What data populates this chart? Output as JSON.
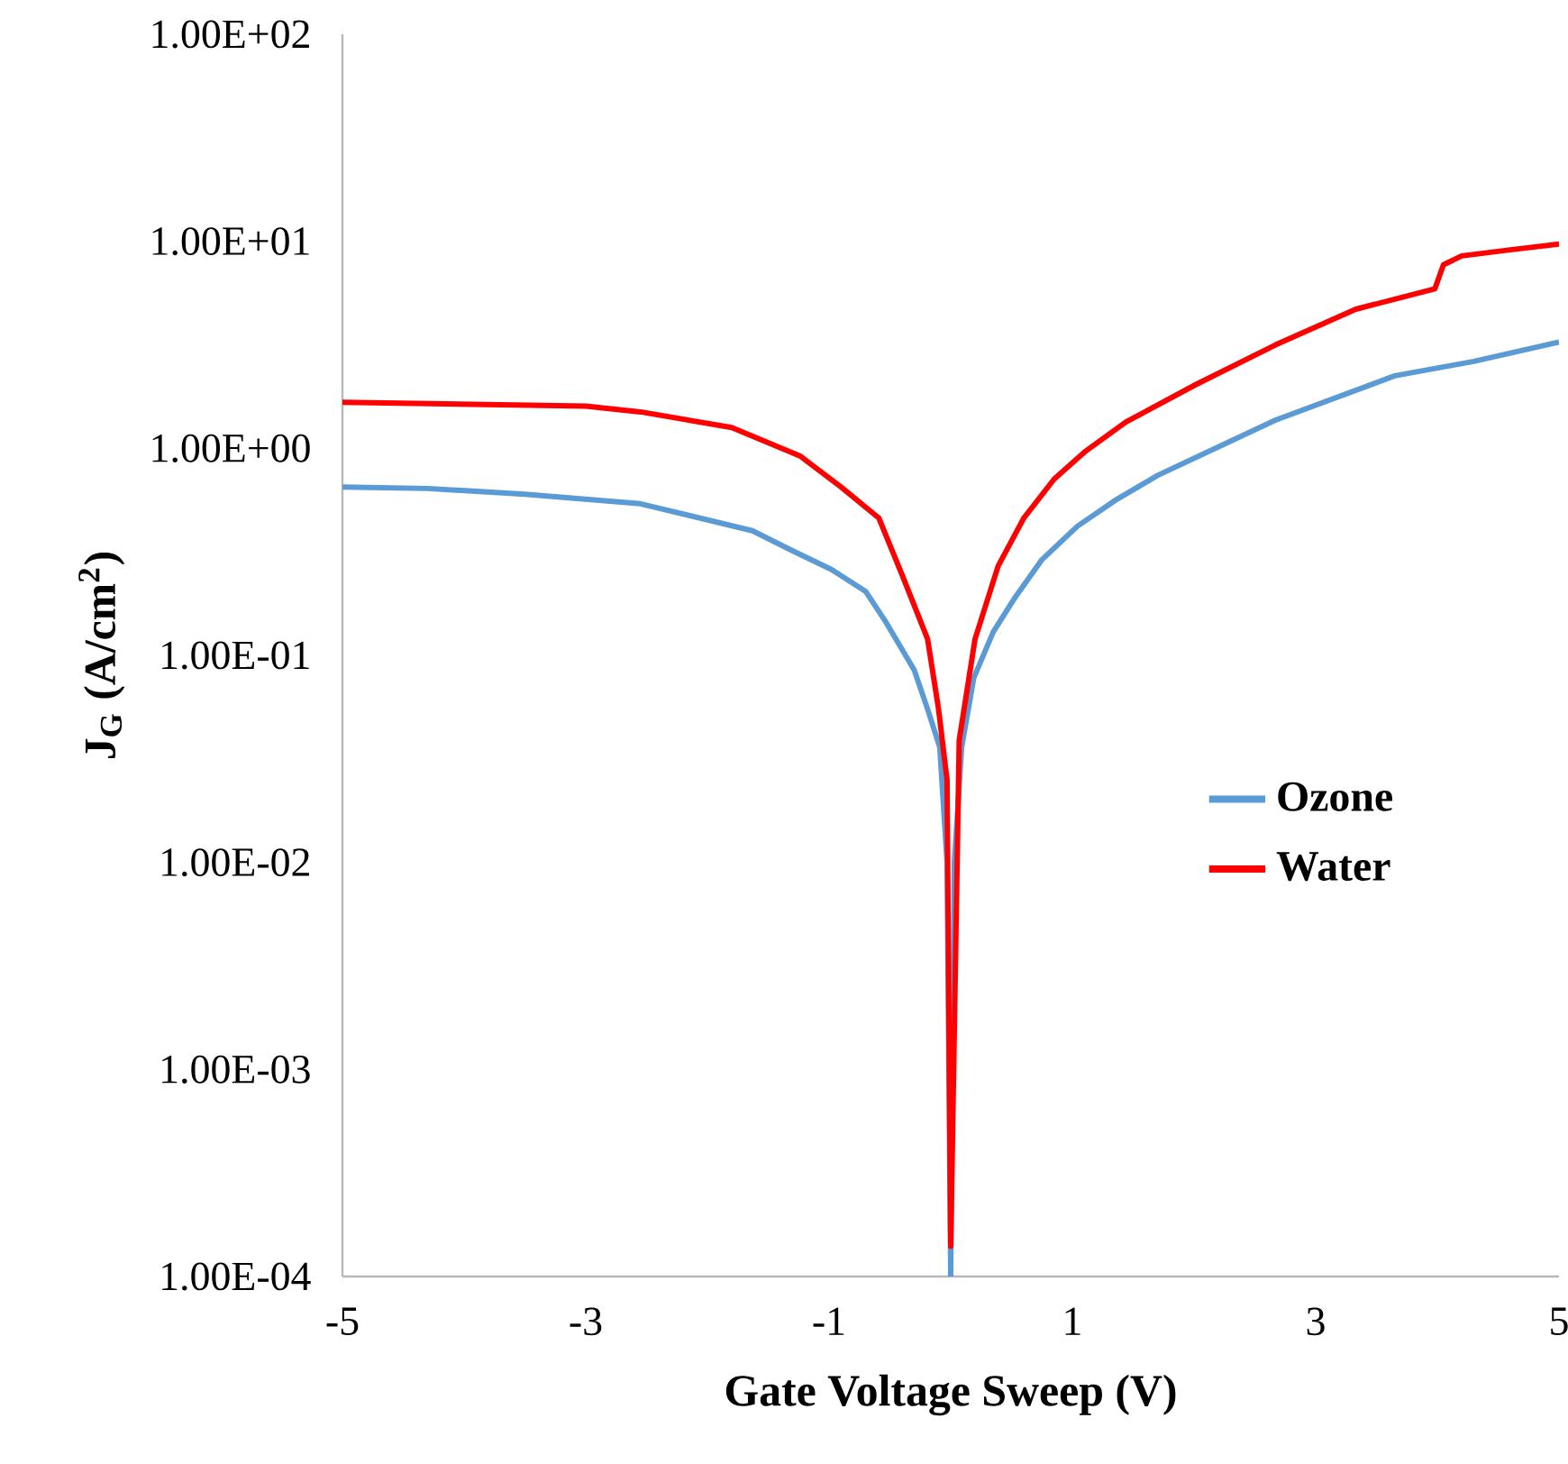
{
  "chart_data": {
    "type": "line",
    "xlabel": "Gate Voltage Sweep (V)",
    "ylabel": "J$_{G}$ (A/cm$^{2}$)",
    "log": "y",
    "grid": false,
    "legend": "right",
    "marker": "none",
    "line_style": "solid",
    "xlim": [
      -5,
      5
    ],
    "xticks": [
      -5,
      -3,
      -1,
      1,
      3,
      5
    ],
    "ylim": [
      0.0001,
      100
    ],
    "yticks": [
      {
        "value": 0.0001,
        "label": "1.00E-04"
      },
      {
        "value": 0.001,
        "label": "1.00E-03"
      },
      {
        "value": 0.01,
        "label": "1.00E-02"
      },
      {
        "value": 0.1,
        "label": "1.00E-01"
      },
      {
        "value": 1,
        "label": "1.00E+00"
      },
      {
        "value": 10,
        "label": "1.00E+01"
      },
      {
        "value": 100,
        "label": "1.00E+02"
      }
    ],
    "series": [
      {
        "name": "Ozone",
        "color": "#5b9bd5",
        "x": [
          -5,
          -4.3,
          -3.5,
          -2.55,
          -1.63,
          -1.3,
          -0.98,
          -0.7,
          -0.53,
          -0.3,
          -0.19,
          -0.09,
          -0.03,
          0,
          0.03,
          0.09,
          0.19,
          0.35,
          0.52,
          0.75,
          1.04,
          1.35,
          1.7,
          2.67,
          3.65,
          4.3,
          5
        ],
        "values": [
          0.65,
          0.64,
          0.6,
          0.54,
          0.4,
          0.32,
          0.26,
          0.204,
          0.144,
          0.085,
          0.055,
          0.036,
          0.01,
          0.0001,
          0.01,
          0.036,
          0.078,
          0.13,
          0.187,
          0.29,
          0.42,
          0.56,
          0.74,
          1.37,
          2.24,
          2.63,
          3.26
        ]
      },
      {
        "name": "Water",
        "color": "#ff0000",
        "x": [
          -5,
          -3,
          -2.55,
          -1.8,
          -1.24,
          -0.9,
          -0.59,
          -0.4,
          -0.19,
          -0.1,
          -0.03,
          0,
          0.07,
          0.2,
          0.39,
          0.6,
          0.85,
          1.1,
          1.44,
          2.02,
          2.67,
          3.33,
          3.98,
          4.05,
          4.2,
          4.6,
          5
        ],
        "values": [
          1.67,
          1.6,
          1.5,
          1.26,
          0.92,
          0.65,
          0.46,
          0.245,
          0.12,
          0.055,
          0.025,
          0.00014,
          0.039,
          0.12,
          0.27,
          0.46,
          0.71,
          0.96,
          1.34,
          2.04,
          3.16,
          4.7,
          5.9,
          7.7,
          8.5,
          9.1,
          9.7
        ]
      }
    ]
  }
}
